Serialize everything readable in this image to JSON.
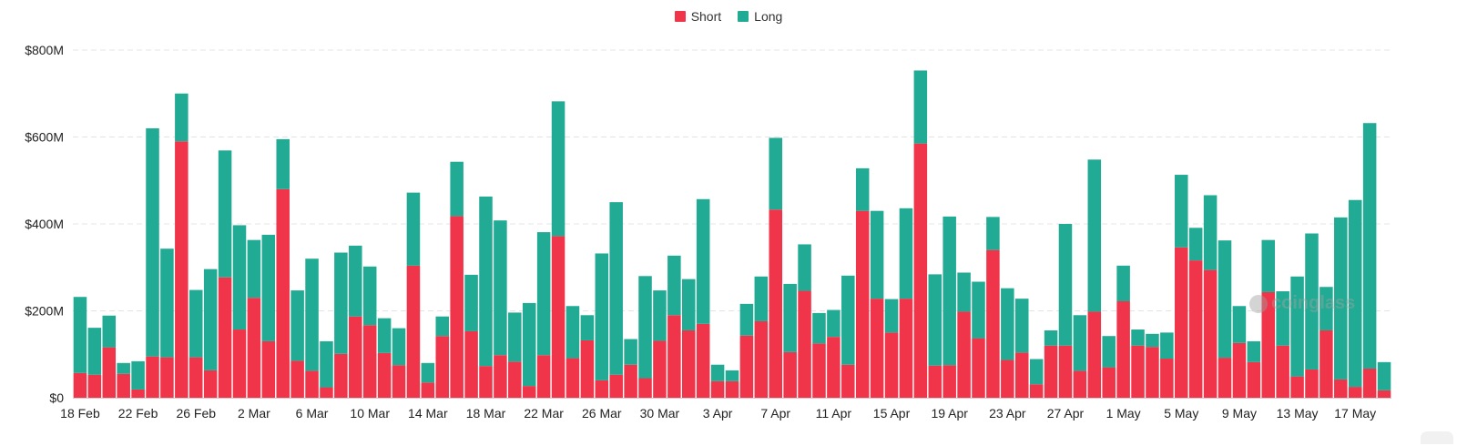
{
  "legend": {
    "short_label": "Short",
    "long_label": "Long",
    "short_color": "#f0344a",
    "long_color": "#22ab94"
  },
  "watermark": {
    "text": "coinglass",
    "icon": "coinglass-logo-icon"
  },
  "chart_data": {
    "type": "bar",
    "stacked": true,
    "legend_position": "top-center",
    "grid": "horizontal dashed",
    "ylim": [
      0,
      800
    ],
    "y_ticks": [
      "$0",
      "$200M",
      "$400M",
      "$600M",
      "$800M"
    ],
    "y_tick_values": [
      0,
      200,
      400,
      600,
      800
    ],
    "y_unit": "$M",
    "x_tick_labels": [
      {
        "index": 0,
        "label": "18 Feb"
      },
      {
        "index": 4,
        "label": "22 Feb"
      },
      {
        "index": 8,
        "label": "26 Feb"
      },
      {
        "index": 12,
        "label": "2 Mar"
      },
      {
        "index": 16,
        "label": "6 Mar"
      },
      {
        "index": 20,
        "label": "10 Mar"
      },
      {
        "index": 24,
        "label": "14 Mar"
      },
      {
        "index": 28,
        "label": "18 Mar"
      },
      {
        "index": 32,
        "label": "22 Mar"
      },
      {
        "index": 36,
        "label": "26 Mar"
      },
      {
        "index": 40,
        "label": "30 Mar"
      },
      {
        "index": 44,
        "label": "3 Apr"
      },
      {
        "index": 48,
        "label": "7 Apr"
      },
      {
        "index": 52,
        "label": "11 Apr"
      },
      {
        "index": 56,
        "label": "15 Apr"
      },
      {
        "index": 60,
        "label": "19 Apr"
      },
      {
        "index": 64,
        "label": "23 Apr"
      },
      {
        "index": 68,
        "label": "27 Apr"
      },
      {
        "index": 72,
        "label": "1 May"
      },
      {
        "index": 76,
        "label": "5 May"
      },
      {
        "index": 80,
        "label": "9 May"
      },
      {
        "index": 84,
        "label": "13 May"
      },
      {
        "index": 88,
        "label": "17 May"
      }
    ],
    "series": [
      {
        "name": "Short",
        "color": "#f0344a",
        "values": [
          57,
          53,
          116,
          55,
          19,
          95,
          93,
          590,
          93,
          63,
          277,
          157,
          230,
          130,
          480,
          85,
          62,
          24,
          101,
          187,
          167,
          103,
          75,
          304,
          35,
          142,
          418,
          153,
          73,
          98,
          83,
          27,
          98,
          372,
          91,
          132,
          40,
          53,
          76,
          45,
          131,
          190,
          155,
          170,
          38,
          38,
          143,
          176,
          433,
          105,
          246,
          125,
          140,
          76,
          430,
          228,
          150,
          228,
          585,
          74,
          75,
          198,
          137,
          340,
          87,
          104,
          31,
          120,
          120,
          62,
          198,
          70,
          222,
          120,
          117,
          90,
          346,
          316,
          294,
          92,
          126,
          82,
          243,
          120,
          49,
          65,
          155,
          42,
          25,
          67,
          17
        ]
      },
      {
        "name": "Long",
        "color": "#22ab94",
        "values": [
          175,
          108,
          73,
          25,
          65,
          525,
          250,
          110,
          155,
          233,
          292,
          240,
          133,
          245,
          115,
          162,
          258,
          106,
          233,
          163,
          135,
          80,
          85,
          168,
          45,
          45,
          125,
          130,
          390,
          310,
          113,
          191,
          283,
          310,
          120,
          58,
          292,
          397,
          59,
          235,
          116,
          137,
          118,
          287,
          38,
          25,
          73,
          103,
          165,
          157,
          107,
          70,
          62,
          205,
          98,
          202,
          77,
          208,
          168,
          210,
          342,
          90,
          130,
          76,
          165,
          124,
          58,
          35,
          280,
          128,
          350,
          72,
          82,
          37,
          30,
          60,
          167,
          75,
          172,
          270,
          85,
          48,
          120,
          125,
          230,
          313,
          100,
          373,
          430,
          565,
          65
        ]
      }
    ]
  }
}
